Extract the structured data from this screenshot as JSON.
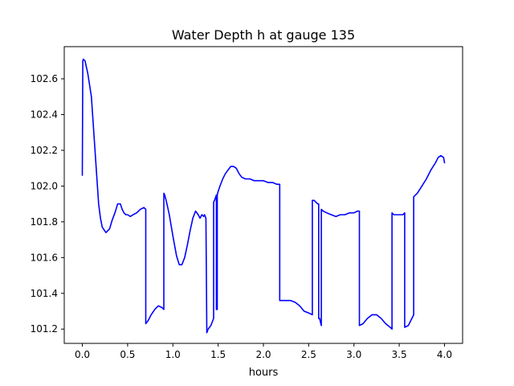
{
  "chart_data": {
    "type": "line",
    "title": "Water Depth h at gauge 135",
    "xlabel": "hours",
    "ylabel": "",
    "xlim": [
      -0.2,
      4.2
    ],
    "ylim": [
      101.12,
      102.78
    ],
    "xticks": [
      0.0,
      0.5,
      1.0,
      1.5,
      2.0,
      2.5,
      3.0,
      3.5,
      4.0
    ],
    "xtick_labels": [
      "0.0",
      "0.5",
      "1.0",
      "1.5",
      "2.0",
      "2.5",
      "3.0",
      "3.5",
      "4.0"
    ],
    "yticks": [
      101.2,
      101.4,
      101.6,
      101.8,
      102.0,
      102.2,
      102.4,
      102.6
    ],
    "ytick_labels": [
      "101.2",
      "101.4",
      "101.6",
      "101.8",
      "102.0",
      "102.2",
      "102.4",
      "102.6"
    ],
    "grid": false,
    "series": [
      {
        "color": "#0000ff",
        "x": [
          0.0,
          0.005,
          0.01,
          0.03,
          0.06,
          0.1,
          0.14,
          0.18,
          0.2,
          0.22,
          0.26,
          0.3,
          0.33,
          0.36,
          0.39,
          0.42,
          0.44,
          0.46,
          0.48,
          0.5,
          0.53,
          0.56,
          0.6,
          0.64,
          0.68,
          0.7,
          0.7,
          0.73,
          0.76,
          0.8,
          0.84,
          0.88,
          0.9,
          0.9,
          0.91,
          0.93,
          0.96,
          1.0,
          1.04,
          1.07,
          1.1,
          1.13,
          1.16,
          1.19,
          1.22,
          1.25,
          1.28,
          1.3,
          1.31,
          1.32,
          1.34,
          1.35,
          1.365,
          1.375,
          1.375,
          1.39,
          1.42,
          1.45,
          1.45,
          1.46,
          1.48,
          1.48,
          1.49,
          1.49,
          1.5,
          1.52,
          1.55,
          1.58,
          1.61,
          1.64,
          1.67,
          1.7,
          1.73,
          1.76,
          1.8,
          1.85,
          1.9,
          1.95,
          2.0,
          2.05,
          2.1,
          2.15,
          2.18,
          2.18,
          2.2,
          2.25,
          2.3,
          2.35,
          2.4,
          2.45,
          2.5,
          2.54,
          2.54,
          2.56,
          2.58,
          2.6,
          2.61,
          2.61,
          2.62,
          2.64,
          2.64,
          2.66,
          2.7,
          2.75,
          2.8,
          2.85,
          2.9,
          2.95,
          3.0,
          3.04,
          3.06,
          3.06,
          3.1,
          3.15,
          3.2,
          3.25,
          3.3,
          3.35,
          3.4,
          3.42,
          3.42,
          3.44,
          3.47,
          3.5,
          3.54,
          3.56,
          3.56,
          3.6,
          3.64,
          3.66,
          3.66,
          3.7,
          3.75,
          3.8,
          3.85,
          3.9,
          3.93,
          3.96,
          3.99,
          4.0
        ],
        "y": [
          102.06,
          102.7,
          102.71,
          102.7,
          102.63,
          102.5,
          102.2,
          101.9,
          101.82,
          101.77,
          101.74,
          101.76,
          101.81,
          101.85,
          101.9,
          101.9,
          101.87,
          101.85,
          101.84,
          101.84,
          101.83,
          101.84,
          101.85,
          101.87,
          101.88,
          101.87,
          101.23,
          101.25,
          101.28,
          101.31,
          101.33,
          101.32,
          101.31,
          101.96,
          101.95,
          101.91,
          101.84,
          101.72,
          101.61,
          101.56,
          101.56,
          101.6,
          101.67,
          101.75,
          101.82,
          101.86,
          101.84,
          101.82,
          101.83,
          101.84,
          101.83,
          101.84,
          101.82,
          101.2,
          101.18,
          101.2,
          101.22,
          101.26,
          101.91,
          101.92,
          101.95,
          101.31,
          101.31,
          101.95,
          101.97,
          102.0,
          102.04,
          102.07,
          102.09,
          102.11,
          102.11,
          102.1,
          102.07,
          102.05,
          102.04,
          102.04,
          102.03,
          102.03,
          102.03,
          102.02,
          102.02,
          102.01,
          102.01,
          101.36,
          101.36,
          101.36,
          101.36,
          101.35,
          101.33,
          101.3,
          101.29,
          101.28,
          101.92,
          101.92,
          101.91,
          101.9,
          101.9,
          101.26,
          101.26,
          101.22,
          101.87,
          101.86,
          101.85,
          101.84,
          101.83,
          101.84,
          101.84,
          101.85,
          101.85,
          101.86,
          101.86,
          101.22,
          101.23,
          101.26,
          101.28,
          101.28,
          101.26,
          101.23,
          101.21,
          101.2,
          101.85,
          101.84,
          101.84,
          101.84,
          101.84,
          101.85,
          101.21,
          101.22,
          101.26,
          101.28,
          101.94,
          101.96,
          102.0,
          102.04,
          102.09,
          102.13,
          102.16,
          102.17,
          102.16,
          102.13
        ]
      }
    ]
  }
}
